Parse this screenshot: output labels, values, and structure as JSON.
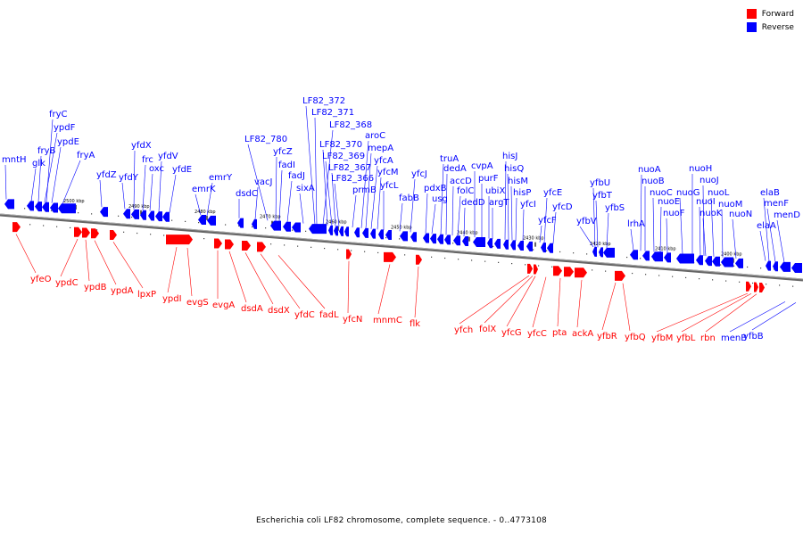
{
  "legend": {
    "forward_label": "Forward",
    "reverse_label": "Reverse",
    "forward_color": "#ff0000",
    "reverse_color": "#0000ff"
  },
  "footer": "Escherichia coli LF82 chromosome, complete sequence. - 0..4773108",
  "genome_ticks": [
    "2500 kbp",
    "2490 kbp",
    "2480 kbp",
    "2470 kbp",
    "2460 kbp",
    "2450 kbp",
    "2440 kbp",
    "2430 kbp",
    "2420 kbp",
    "2410 kbp",
    "2400 kbp"
  ],
  "reverse_labels": [
    "mntH",
    "glk",
    "fryB",
    "ypdF",
    "fryC",
    "ypdE",
    "fryA",
    "yfdZ",
    "yfdY",
    "yfdX",
    "frc",
    "oxc",
    "yfdV",
    "yfdE",
    "emrK",
    "emrY",
    "dsdC",
    "vacJ",
    "LF82_780",
    "yfcZ",
    "fadI",
    "fadJ",
    "sixA",
    "LF82_372",
    "LF82_371",
    "LF82_368",
    "LF82_370",
    "LF82_369",
    "LF82_367",
    "LF82_366",
    "prmB",
    "aroC",
    "mepA",
    "yfcA",
    "yfcM",
    "yfcL",
    "fabB",
    "yfcJ",
    "pdxB",
    "usg",
    "truA",
    "dedA",
    "accD",
    "folC",
    "dedD",
    "cvpA",
    "purF",
    "ubiX",
    "argT",
    "hisJ",
    "hisQ",
    "hisM",
    "hisP",
    "yfcI",
    "yfcE",
    "yfcF",
    "yfcD",
    "yfbV",
    "yfbU",
    "yfbT",
    "yfbS",
    "lrhA",
    "nuoA",
    "nuoB",
    "nuoC",
    "nuoE",
    "nuoF",
    "nuoG",
    "nuoH",
    "nuoI",
    "nuoJ",
    "nuoK",
    "nuoL",
    "nuoM",
    "nuoN",
    "elaB",
    "menF",
    "menD",
    "elaA",
    "menB",
    "yfbB"
  ],
  "forward_labels": [
    "yfeO",
    "ypdC",
    "ypdB",
    "ypdA",
    "lpxP",
    "ypdI",
    "evgS",
    "evgA",
    "dsdA",
    "dsdX",
    "yfdC",
    "fadL",
    "yfcN",
    "mnmC",
    "flk",
    "yfch",
    "folX",
    "yfcG",
    "yfcC",
    "pta",
    "ackA",
    "yfbR",
    "yfbQ",
    "yfbM",
    "yfbL",
    "rbn"
  ]
}
